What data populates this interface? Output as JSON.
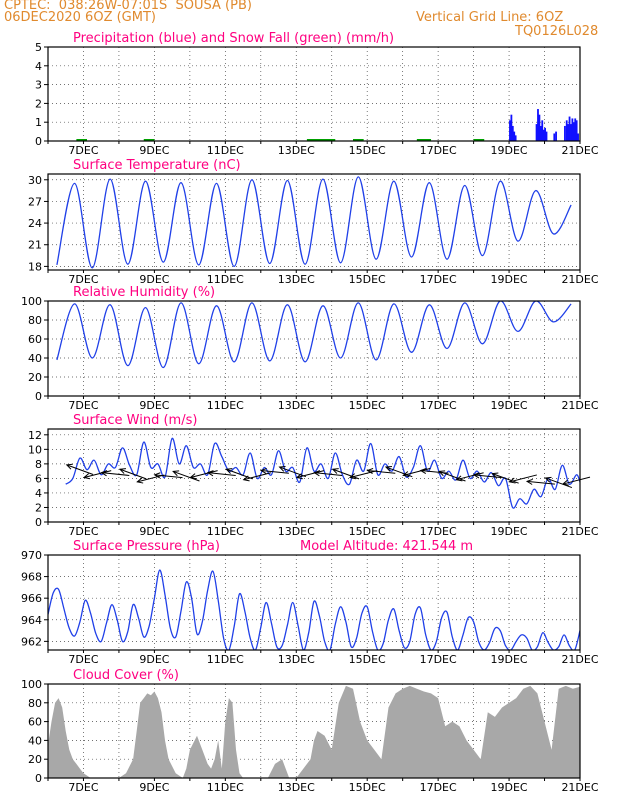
{
  "header": {
    "line1_left": "CPTEC:  038:26W-07:01S  SOUSA (PB)",
    "line2_left": "06DEC2020 6OZ (GMT)",
    "line2_right": "Vertical Grid Line: 6OZ",
    "line3_right": "TQ0126L028"
  },
  "colors": {
    "header": "#e08a2e",
    "title": "#ff0080",
    "rain": "#1010ff",
    "snow": "#00a000",
    "line": "#2040e8",
    "cloud": "#a8a8a8",
    "grid": "#444444"
  },
  "x_ticks": [
    "7DEC",
    "9DEC",
    "11DEC",
    "13DEC",
    "15DEC",
    "17DEC",
    "19DEC",
    "21DEC"
  ],
  "chart_data": [
    {
      "id": "precip",
      "type": "bar",
      "title": "Precipitation (blue) and Snow Fall (green) (mm/h)",
      "ylim": [
        0,
        5
      ],
      "yticks": [
        "0",
        "1",
        "2",
        "3",
        "4",
        "5"
      ],
      "x": [
        19.0,
        19.04,
        19.08,
        19.12,
        19.16,
        19.75,
        19.79,
        19.83,
        19.87,
        19.91,
        19.95,
        19.99,
        20.03,
        20.25,
        20.3,
        20.55,
        20.6,
        20.64,
        20.68,
        20.72,
        20.76,
        20.8,
        20.84,
        20.88,
        20.92
      ],
      "values": [
        1.1,
        1.4,
        0.8,
        0.5,
        0.3,
        0.9,
        1.7,
        1.4,
        0.8,
        1.1,
        0.6,
        0.7,
        0.5,
        0.4,
        0.5,
        0.8,
        1.1,
        0.9,
        1.3,
        0.9,
        1.2,
        1.0,
        1.2,
        1.1,
        0.4
      ],
      "snow": [
        [
          6.8,
          7.1
        ],
        [
          8.7,
          9.0
        ],
        [
          13.3,
          14.1
        ],
        [
          14.6,
          14.9
        ],
        [
          16.4,
          16.8
        ],
        [
          18.0,
          18.3
        ]
      ]
    },
    {
      "id": "temp",
      "type": "line",
      "title": "Surface Temperature (nC)",
      "ylim": [
        17.5,
        30.8
      ],
      "yticks": [
        "18",
        "21",
        "24",
        "27",
        "30"
      ],
      "day_max": [
        25.2,
        29.5,
        30.1,
        29.8,
        29.6,
        29.5,
        30.0,
        29.9,
        30.1,
        30.4,
        29.8,
        29.6,
        29.2,
        29.8,
        28.5,
        26.5
      ],
      "day_min": [
        18.2,
        17.8,
        18.3,
        18.6,
        18.2,
        18.0,
        18.4,
        18.3,
        18.5,
        19.0,
        19.3,
        19.0,
        19.5,
        21.5,
        22.5,
        22.0
      ]
    },
    {
      "id": "rh",
      "type": "line",
      "title": "Relative Humidity (%)",
      "ylim": [
        0,
        100
      ],
      "yticks": [
        "0",
        "20",
        "40",
        "60",
        "80",
        "100"
      ],
      "day_max": [
        99,
        97,
        96,
        93,
        98,
        95,
        98,
        96,
        95,
        98,
        97,
        96,
        98,
        100,
        100,
        97
      ],
      "day_min": [
        38,
        40,
        32,
        30,
        34,
        36,
        37,
        36,
        40,
        38,
        46,
        50,
        55,
        68,
        78,
        82
      ]
    },
    {
      "id": "wind",
      "type": "line",
      "title": "Surface Wind (m/s)",
      "ylim": [
        0,
        12.8
      ],
      "yticks": [
        "0",
        "2",
        "4",
        "6",
        "8",
        "10",
        "12"
      ],
      "x": [
        6.5,
        6.7,
        6.9,
        7.1,
        7.3,
        7.5,
        7.7,
        7.9,
        8.1,
        8.3,
        8.5,
        8.7,
        8.9,
        9.1,
        9.3,
        9.5,
        9.7,
        9.9,
        10.1,
        10.3,
        10.5,
        10.7,
        10.9,
        11.1,
        11.3,
        11.5,
        11.7,
        11.9,
        12.1,
        12.3,
        12.5,
        12.7,
        12.9,
        13.1,
        13.3,
        13.5,
        13.7,
        13.9,
        14.1,
        14.3,
        14.5,
        14.7,
        14.9,
        15.1,
        15.3,
        15.5,
        15.7,
        15.9,
        16.1,
        16.3,
        16.5,
        16.7,
        16.9,
        17.1,
        17.3,
        17.5,
        17.7,
        17.9,
        18.1,
        18.3,
        18.5,
        18.7,
        18.9,
        19.1,
        19.3,
        19.5,
        19.7,
        19.9,
        20.1,
        20.3,
        20.5,
        20.7,
        20.9,
        21.0
      ],
      "values": [
        5.2,
        6.0,
        8.8,
        7.2,
        8.5,
        6.5,
        8.0,
        7.5,
        10.2,
        7.8,
        6.5,
        11.0,
        7.5,
        8.0,
        6.2,
        11.5,
        8.0,
        10.5,
        7.5,
        8.0,
        6.5,
        10.8,
        9.0,
        7.0,
        7.5,
        6.5,
        9.5,
        6.0,
        7.5,
        6.5,
        9.8,
        7.0,
        7.5,
        5.5,
        10.2,
        7.0,
        8.0,
        6.0,
        9.5,
        6.5,
        5.2,
        8.5,
        7.0,
        10.8,
        6.5,
        8.0,
        7.0,
        9.0,
        6.2,
        7.5,
        10.5,
        7.0,
        8.5,
        6.0,
        7.0,
        5.8,
        8.5,
        6.0,
        7.0,
        5.5,
        6.8,
        5.0,
        6.0,
        2.0,
        3.2,
        2.5,
        4.5,
        3.5,
        6.0,
        4.5,
        7.8,
        5.2,
        6.5,
        5.5
      ],
      "arrows": [
        [
          6.9,
          7.2
        ],
        [
          7.4,
          6.6
        ],
        [
          7.9,
          6.6
        ],
        [
          8.4,
          6.6
        ],
        [
          8.9,
          6.0
        ],
        [
          9.4,
          6.3
        ],
        [
          9.9,
          6.3
        ],
        [
          10.4,
          6.6
        ],
        [
          10.9,
          6.6
        ],
        [
          11.4,
          6.6
        ],
        [
          11.9,
          6.3
        ],
        [
          12.4,
          6.9
        ],
        [
          12.9,
          6.9
        ],
        [
          13.4,
          6.6
        ],
        [
          13.9,
          6.6
        ],
        [
          14.4,
          6.6
        ],
        [
          14.9,
          6.6
        ],
        [
          15.4,
          6.9
        ],
        [
          15.9,
          6.9
        ],
        [
          16.4,
          6.9
        ],
        [
          16.9,
          6.9
        ],
        [
          17.4,
          6.3
        ],
        [
          17.9,
          6.3
        ],
        [
          18.4,
          6.3
        ],
        [
          18.9,
          6.0
        ],
        [
          19.4,
          6.0
        ],
        [
          19.9,
          5.4
        ],
        [
          20.4,
          5.4
        ],
        [
          20.9,
          5.7
        ]
      ]
    },
    {
      "id": "press",
      "type": "line",
      "title": "Surface Pressure (hPa)",
      "title_right": "Model Altitude: 421.544 m",
      "ylim": [
        961.2,
        970
      ],
      "yticks": [
        "962",
        "964",
        "966",
        "968",
        "970"
      ],
      "x": [
        6.0,
        6.15,
        6.3,
        6.45,
        6.6,
        6.75,
        6.9,
        7.05,
        7.2,
        7.35,
        7.5,
        7.65,
        7.8,
        7.95,
        8.1,
        8.25,
        8.4,
        8.55,
        8.7,
        8.85,
        9.0,
        9.15,
        9.3,
        9.45,
        9.6,
        9.75,
        9.9,
        10.05,
        10.2,
        10.35,
        10.5,
        10.65,
        10.8,
        10.95,
        11.1,
        11.25,
        11.4,
        11.55,
        11.7,
        11.85,
        12.0,
        12.15,
        12.3,
        12.45,
        12.6,
        12.75,
        12.9,
        13.05,
        13.2,
        13.35,
        13.5,
        13.65,
        13.8,
        13.95,
        14.1,
        14.25,
        14.4,
        14.55,
        14.7,
        14.85,
        15.0,
        15.15,
        15.3,
        15.45,
        15.6,
        15.75,
        15.9,
        16.05,
        16.2,
        16.35,
        16.5,
        16.65,
        16.8,
        16.95,
        17.1,
        17.25,
        17.4,
        17.55,
        17.7,
        17.85,
        18.0,
        18.15,
        18.3,
        18.45,
        18.6,
        18.75,
        18.9,
        19.05,
        19.2,
        19.35,
        19.5,
        19.65,
        19.8,
        19.95,
        20.1,
        20.25,
        20.4,
        20.55,
        20.7,
        20.85,
        21.0
      ],
      "values": [
        964.5,
        966.5,
        966.8,
        965.0,
        963.2,
        962.5,
        963.8,
        965.8,
        964.6,
        962.7,
        962.0,
        963.7,
        965.4,
        964.0,
        962.0,
        962.9,
        965.4,
        964.2,
        962.4,
        963.4,
        966.0,
        968.6,
        966.3,
        963.2,
        962.4,
        964.8,
        967.5,
        966.0,
        962.7,
        963.8,
        966.7,
        968.5,
        965.8,
        962.3,
        961.2,
        963.4,
        966.4,
        964.8,
        962.3,
        961.2,
        963.3,
        965.6,
        963.7,
        961.5,
        961.6,
        963.5,
        965.6,
        963.5,
        961.2,
        962.8,
        965.7,
        964.4,
        962.0,
        961.2,
        963.6,
        965.2,
        963.8,
        961.5,
        962.3,
        964.6,
        965.2,
        962.9,
        961.2,
        961.8,
        964.0,
        965.0,
        963.0,
        961.4,
        962.0,
        964.5,
        965.1,
        962.6,
        961.2,
        962.0,
        964.2,
        964.7,
        962.4,
        961.2,
        962.6,
        964.2,
        963.8,
        961.9,
        961.2,
        961.9,
        963.2,
        963.0,
        961.6,
        961.2,
        962.0,
        962.6,
        962.3,
        961.2,
        961.5,
        962.8,
        961.9,
        961.2,
        961.5,
        962.6,
        961.6,
        961.2,
        963.0
      ]
    },
    {
      "id": "cloud",
      "type": "area",
      "title": "Cloud Cover (%)",
      "ylim": [
        0,
        100
      ],
      "yticks": [
        "0",
        "20",
        "40",
        "60",
        "80",
        "100"
      ],
      "x": [
        6.0,
        6.1,
        6.2,
        6.3,
        6.4,
        6.5,
        6.6,
        6.7,
        6.8,
        6.9,
        7.0,
        7.2,
        7.4,
        7.6,
        7.8,
        8.0,
        8.2,
        8.4,
        8.5,
        8.6,
        8.7,
        8.8,
        8.9,
        9.0,
        9.1,
        9.2,
        9.3,
        9.4,
        9.6,
        9.8,
        9.9,
        10.0,
        10.2,
        10.4,
        10.5,
        10.6,
        10.7,
        10.8,
        10.9,
        11.0,
        11.1,
        11.2,
        11.3,
        11.4,
        11.5,
        11.6,
        11.8,
        12.0,
        12.2,
        12.4,
        12.6,
        12.8,
        13.0,
        13.2,
        13.4,
        13.5,
        13.6,
        13.8,
        14.0,
        14.2,
        14.4,
        14.6,
        14.8,
        15.0,
        15.2,
        15.4,
        15.6,
        15.8,
        16.0,
        16.2,
        16.4,
        16.6,
        16.8,
        17.0,
        17.2,
        17.4,
        17.6,
        17.8,
        18.0,
        18.2,
        18.4,
        18.6,
        18.8,
        19.0,
        19.2,
        19.4,
        19.6,
        19.8,
        20.0,
        20.2,
        20.4,
        20.6,
        20.8,
        21.0
      ],
      "values": [
        35,
        60,
        80,
        85,
        75,
        50,
        30,
        20,
        15,
        10,
        5,
        0,
        0,
        0,
        0,
        0,
        5,
        20,
        50,
        80,
        85,
        90,
        88,
        92,
        85,
        70,
        40,
        20,
        5,
        0,
        10,
        30,
        45,
        25,
        15,
        10,
        20,
        40,
        10,
        60,
        85,
        80,
        30,
        5,
        0,
        0,
        0,
        0,
        0,
        15,
        20,
        0,
        0,
        10,
        20,
        40,
        50,
        45,
        30,
        80,
        98,
        95,
        60,
        40,
        30,
        20,
        75,
        90,
        95,
        98,
        95,
        92,
        90,
        85,
        55,
        60,
        55,
        40,
        30,
        20,
        70,
        65,
        75,
        80,
        85,
        95,
        98,
        90,
        60,
        30,
        95,
        98,
        95,
        97
      ]
    }
  ]
}
